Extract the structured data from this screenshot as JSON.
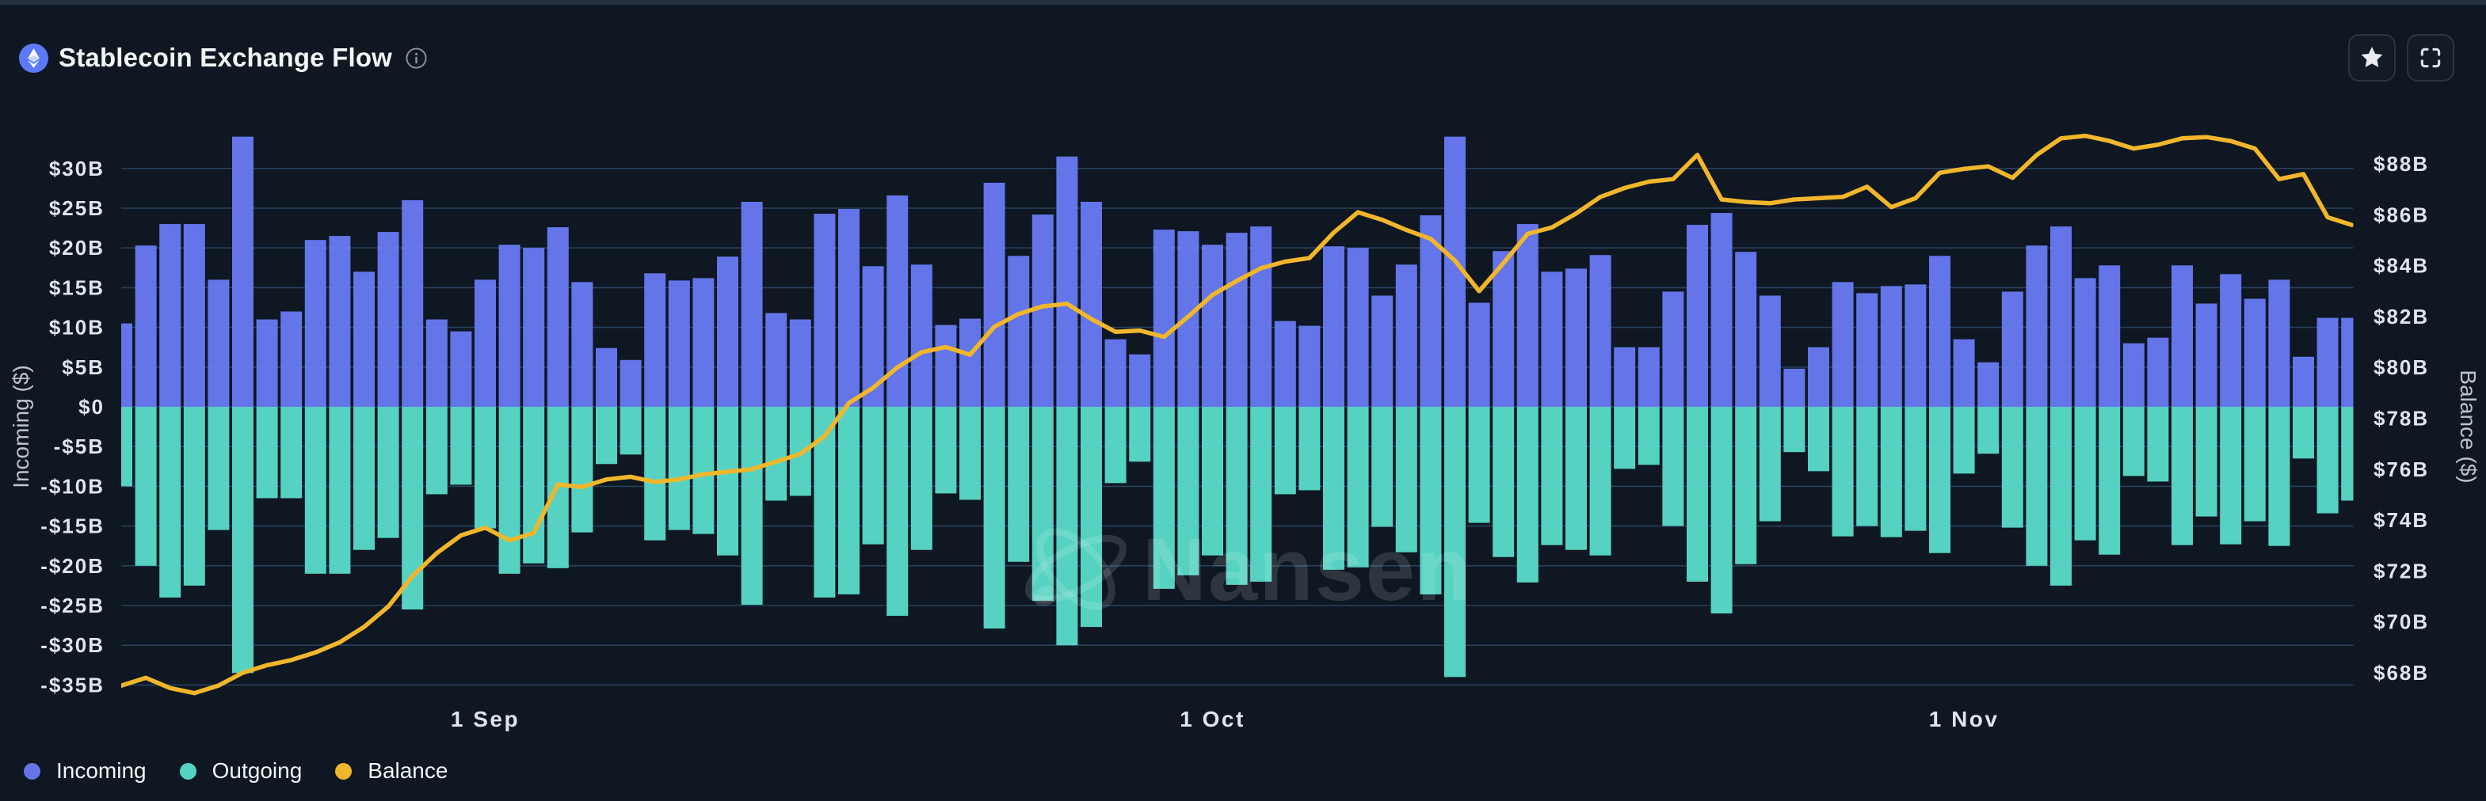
{
  "header": {
    "title": "Stablecoin Exchange Flow",
    "coin_icon": "ethereum",
    "info_icon": "info"
  },
  "actions": {
    "favorite": "star",
    "fullscreen": "expand"
  },
  "watermark": "Nansen",
  "legend": [
    {
      "label": "Incoming",
      "color": "#6375e8"
    },
    {
      "label": "Outgoing",
      "color": "#56d2c2"
    },
    {
      "label": "Balance",
      "color": "#f1b62b"
    }
  ],
  "chart_data": {
    "type": "bar+line",
    "title": "Stablecoin Exchange Flow",
    "x_ticks": [
      {
        "index": 15,
        "label": "1 Sep"
      },
      {
        "index": 45,
        "label": "1 Oct"
      },
      {
        "index": 76,
        "label": "1 Nov"
      }
    ],
    "left_axis": {
      "label": "Incoming ($)",
      "unit": "$B",
      "min": -35,
      "max": 30,
      "tick_step": 5,
      "tick_labels": [
        "$30B",
        "$25B",
        "$20B",
        "$15B",
        "$10B",
        "$5B",
        "$0",
        "-$5B",
        "-$10B",
        "-$15B",
        "-$20B",
        "-$25B",
        "-$30B",
        "-$35B"
      ]
    },
    "right_axis": {
      "label": "Balance ($)",
      "unit": "$B",
      "min": 68,
      "max": 88,
      "tick_step": 2,
      "tick_labels": [
        "$88B",
        "$86B",
        "$84B",
        "$82B",
        "$80B",
        "$78B",
        "$76B",
        "$74B",
        "$72B",
        "$70B",
        "$68B"
      ]
    },
    "grid": "horizontal only",
    "legend_position": "bottom-left",
    "series": [
      {
        "name": "Incoming",
        "type": "bar",
        "axis": "left",
        "unit": "$B",
        "color": "#6375e8",
        "values": [
          10.5,
          20.3,
          23,
          23,
          16,
          34,
          11,
          12,
          21,
          21.5,
          17,
          22,
          26,
          11,
          9.5,
          16,
          20.4,
          20,
          22.6,
          15.7,
          7.4,
          5.9,
          16.8,
          15.9,
          16.2,
          18.9,
          25.8,
          11.8,
          11,
          24.3,
          24.9,
          17.7,
          26.6,
          17.9,
          10.3,
          11.1,
          28.2,
          19,
          24.2,
          31.5,
          25.8,
          8.5,
          6.6,
          22.3,
          22.1,
          20.4,
          21.9,
          22.7,
          10.8,
          10.2,
          20.2,
          20,
          14,
          17.9,
          24.1,
          34,
          13.1,
          19.6,
          23,
          17,
          17.4,
          19.1,
          7.5,
          7.5,
          14.5,
          22.9,
          24.4,
          19.5,
          14,
          4.8,
          7.5,
          15.7,
          14.3,
          15.2,
          15.4,
          19,
          8.5,
          5.6,
          14.5,
          20.3,
          22.7,
          16.2,
          17.8,
          8,
          8.7,
          17.8,
          13,
          16.7,
          13.6,
          16,
          6.3,
          11.2,
          11.2
        ]
      },
      {
        "name": "Outgoing",
        "type": "bar",
        "axis": "left",
        "unit": "$B",
        "color": "#56d2c2",
        "values": [
          -10,
          -20,
          -24,
          -22.5,
          -15.5,
          -33.5,
          -11.5,
          -11.5,
          -21,
          -21,
          -18,
          -16.5,
          -25.5,
          -11,
          -9.8,
          -15.3,
          -21,
          -19.7,
          -20.3,
          -15.8,
          -7.2,
          -6,
          -16.8,
          -15.5,
          -16,
          -18.7,
          -24.9,
          -11.8,
          -11.2,
          -24,
          -23.6,
          -17.3,
          -26.3,
          -18,
          -10.9,
          -11.7,
          -27.9,
          -19.5,
          -24.4,
          -30,
          -27.7,
          -9.6,
          -6.9,
          -22.9,
          -21.2,
          -18.7,
          -22.4,
          -22,
          -11,
          -10.5,
          -20.5,
          -20.2,
          -15.1,
          -18.3,
          -23.6,
          -34,
          -14.6,
          -18.9,
          -22.1,
          -17.4,
          -18,
          -18.7,
          -7.8,
          -7.3,
          -15,
          -22,
          -26,
          -19.8,
          -14.4,
          -5.7,
          -8.1,
          -16.3,
          -15,
          -16.4,
          -15.6,
          -18.4,
          -8.4,
          -5.9,
          -15.2,
          -20,
          -22.5,
          -16.8,
          -18.6,
          -8.7,
          -9.4,
          -17.4,
          -13.8,
          -17.3,
          -14.4,
          -17.5,
          -6.5,
          -13.4,
          -11.8
        ]
      },
      {
        "name": "Balance",
        "type": "line",
        "axis": "right",
        "unit": "$B",
        "color": "#f1b62b",
        "values": [
          67.5,
          67.8,
          67.4,
          67.2,
          67.5,
          68.0,
          68.3,
          68.5,
          68.8,
          69.2,
          69.8,
          70.6,
          71.8,
          72.7,
          73.4,
          73.7,
          73.2,
          73.5,
          75.4,
          75.3,
          75.6,
          75.7,
          75.5,
          75.6,
          75.8,
          75.9,
          76.0,
          76.3,
          76.6,
          77.3,
          78.6,
          79.2,
          80.0,
          80.6,
          80.8,
          80.5,
          81.6,
          82.1,
          82.4,
          82.5,
          81.9,
          81.4,
          81.45,
          81.2,
          82.0,
          82.85,
          83.4,
          83.9,
          84.16,
          84.3,
          85.3,
          86.1,
          85.8,
          85.4,
          85.05,
          84.2,
          83.0,
          84.1,
          85.25,
          85.5,
          86.05,
          86.7,
          87.05,
          87.3,
          87.4,
          88.35,
          86.6,
          86.5,
          86.45,
          86.6,
          86.65,
          86.7,
          87.1,
          86.3,
          86.65,
          87.65,
          87.8,
          87.9,
          87.45,
          88.35,
          89.0,
          89.1,
          88.9,
          88.6,
          88.75,
          89.0,
          89.05,
          88.9,
          88.6,
          87.4,
          87.6,
          85.9,
          85.6
        ]
      }
    ]
  }
}
